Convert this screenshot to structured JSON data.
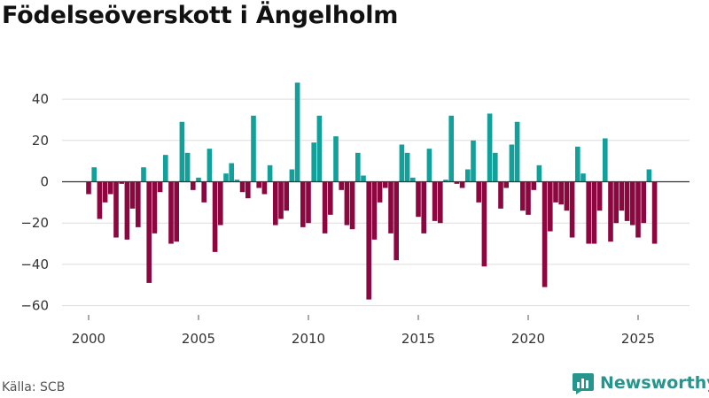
{
  "title": "Födelseöverskott i Ängelholm",
  "source": "Källa: SCB",
  "brand": "Newsworthy",
  "colors": {
    "positive": "#12a09a",
    "negative": "#8c0740",
    "brand": "#26958d",
    "grid": "#dddddd",
    "zero": "#333333"
  },
  "chart_data": {
    "type": "bar",
    "title": "Födelseöverskott i Ängelholm",
    "xlabel": "",
    "ylabel": "",
    "x_start": 2000.0,
    "x_step": 0.25,
    "ylim": [
      -62,
      50
    ],
    "yticks": [
      40,
      20,
      0,
      -20,
      -40,
      -60
    ],
    "ytick_labels": [
      "40",
      "20",
      "0",
      "−20",
      "−40",
      "−60"
    ],
    "xticks": [
      2000,
      2005,
      2010,
      2015,
      2020,
      2025
    ],
    "xtick_labels": [
      "2000",
      "2005",
      "2010",
      "2015",
      "2020",
      "2025"
    ],
    "values": [
      -6,
      7,
      -18,
      -10,
      -6,
      -27,
      -1,
      -28,
      -13,
      -22,
      7,
      -49,
      -25,
      -5,
      13,
      -30,
      -29,
      29,
      14,
      -4,
      2,
      -10,
      16,
      -34,
      -21,
      4,
      9,
      1,
      -5,
      -8,
      32,
      -3,
      -6,
      8,
      -21,
      -18,
      -14,
      6,
      48,
      -22,
      -20,
      19,
      32,
      -25,
      -16,
      22,
      -4,
      -21,
      -23,
      14,
      3,
      -57,
      -28,
      -10,
      -3,
      -25,
      -38,
      18,
      14,
      2,
      -17,
      -25,
      16,
      -19,
      -20,
      1,
      32,
      -1,
      -3,
      6,
      20,
      -10,
      -41,
      33,
      14,
      -13,
      -3,
      18,
      29,
      -14,
      -16,
      -4,
      8,
      -51,
      -24,
      -10,
      -11,
      -14,
      -27,
      17,
      4,
      -30,
      -30,
      -14,
      21,
      -29,
      -20,
      -14,
      -19,
      -21,
      -27,
      -20,
      6,
      -30
    ]
  }
}
